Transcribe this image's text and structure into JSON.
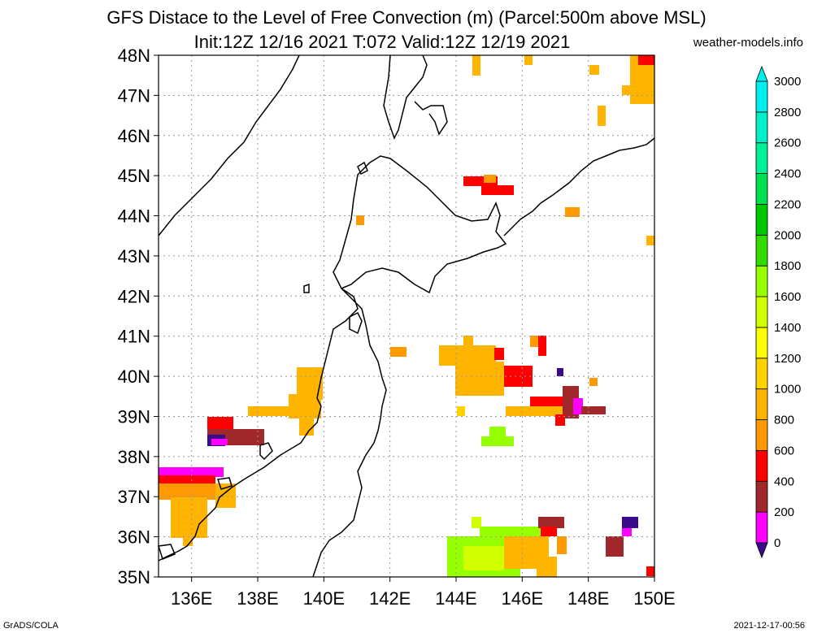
{
  "header": {
    "title_line1": "GFS Distace to the Level of Free Convection (m) (Parcel:500m above MSL)",
    "title_line2": "Init:12Z 12/16 2021 T:072 Valid:12Z 12/19 2021",
    "brand": "weather-models.info"
  },
  "footer": {
    "left": "GrADS/COLA",
    "right": "2021-12-17-00:56"
  },
  "map": {
    "lon_range": [
      135,
      150
    ],
    "lat_range": [
      35,
      48
    ],
    "lat_labels": [
      "35N",
      "36N",
      "37N",
      "38N",
      "39N",
      "40N",
      "41N",
      "42N",
      "43N",
      "44N",
      "45N",
      "46N",
      "47N",
      "48N"
    ],
    "lon_labels": [
      "136E",
      "138E",
      "140E",
      "142E",
      "144E",
      "146E",
      "148E",
      "150E"
    ],
    "lon_values": [
      136,
      138,
      140,
      142,
      144,
      146,
      148,
      150
    ],
    "grid": true
  },
  "colorbar": {
    "labels": [
      "0",
      "200",
      "400",
      "600",
      "800",
      "1000",
      "1200",
      "1400",
      "1600",
      "1800",
      "2000",
      "2200",
      "2400",
      "2600",
      "2800",
      "3000"
    ],
    "colors": [
      "#3b0a8c",
      "#ff00ff",
      "#a0282a",
      "#ff0000",
      "#ff9900",
      "#ffb400",
      "#ffd200",
      "#ffff00",
      "#d2ff00",
      "#96ff00",
      "#32dc00",
      "#00c800",
      "#00e150",
      "#00f096",
      "#00f0c8",
      "#00f0f0"
    ]
  }
}
